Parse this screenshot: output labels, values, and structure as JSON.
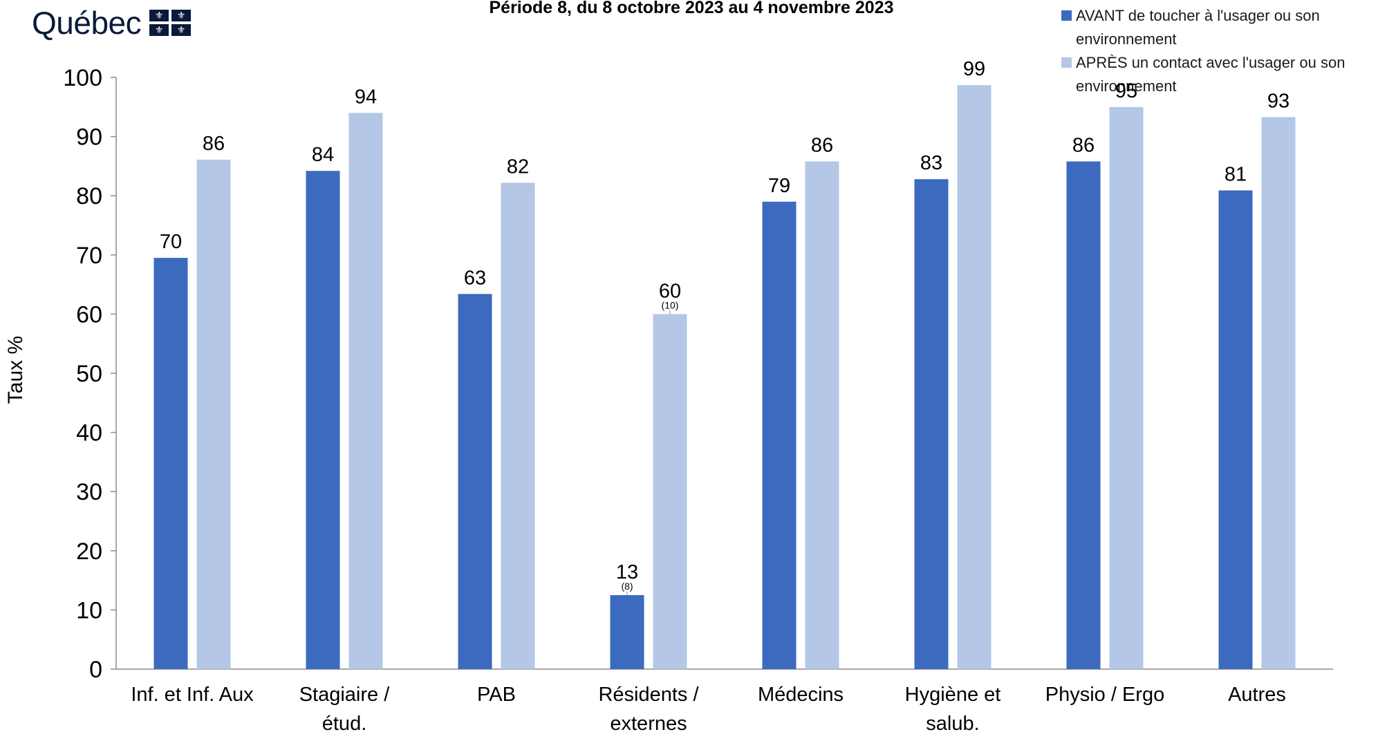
{
  "logo": {
    "wordmark": "Québec",
    "flag_glyph": "⚜",
    "icon": "fleur-de-lis-flag-icon"
  },
  "chart_data": {
    "type": "bar",
    "title": "Période 8, du 8 octobre 2023 au 4 novembre 2023",
    "ylabel": "Taux %",
    "xlabel": "",
    "ylim": [
      0,
      100
    ],
    "yticks": [
      0,
      10,
      20,
      30,
      40,
      50,
      60,
      70,
      80,
      90,
      100
    ],
    "grid": false,
    "legend_position": "top-right",
    "categories": [
      [
        "Inf. et Inf. Aux"
      ],
      [
        "Stagiaire /",
        "étud."
      ],
      [
        "PAB"
      ],
      [
        "Résidents /",
        "externes"
      ],
      [
        "Médecins"
      ],
      [
        "Hygiène et",
        "salub."
      ],
      [
        "Physio / Ergo"
      ],
      [
        "Autres"
      ]
    ],
    "series": [
      {
        "name": "AVANT de toucher à l'usager ou son environnement",
        "color": "#3b6abf",
        "values": [
          69.5,
          84.2,
          63.4,
          12.5,
          79.0,
          82.8,
          85.8,
          80.9
        ],
        "labels": [
          "70",
          "84",
          "63",
          "13",
          "79",
          "83",
          "86",
          "81"
        ],
        "notes": [
          null,
          null,
          null,
          "(8)",
          null,
          null,
          null,
          null
        ]
      },
      {
        "name": "APRÈS un contact avec l'usager ou son environnement",
        "color": "#b4c7e7",
        "values": [
          86.1,
          94.0,
          82.2,
          60.0,
          85.8,
          98.7,
          95.0,
          93.3
        ],
        "labels": [
          "86",
          "94",
          "82",
          "60",
          "86",
          "99",
          "95",
          "93"
        ],
        "notes": [
          null,
          null,
          null,
          "(10)",
          null,
          null,
          null,
          null
        ]
      }
    ]
  }
}
